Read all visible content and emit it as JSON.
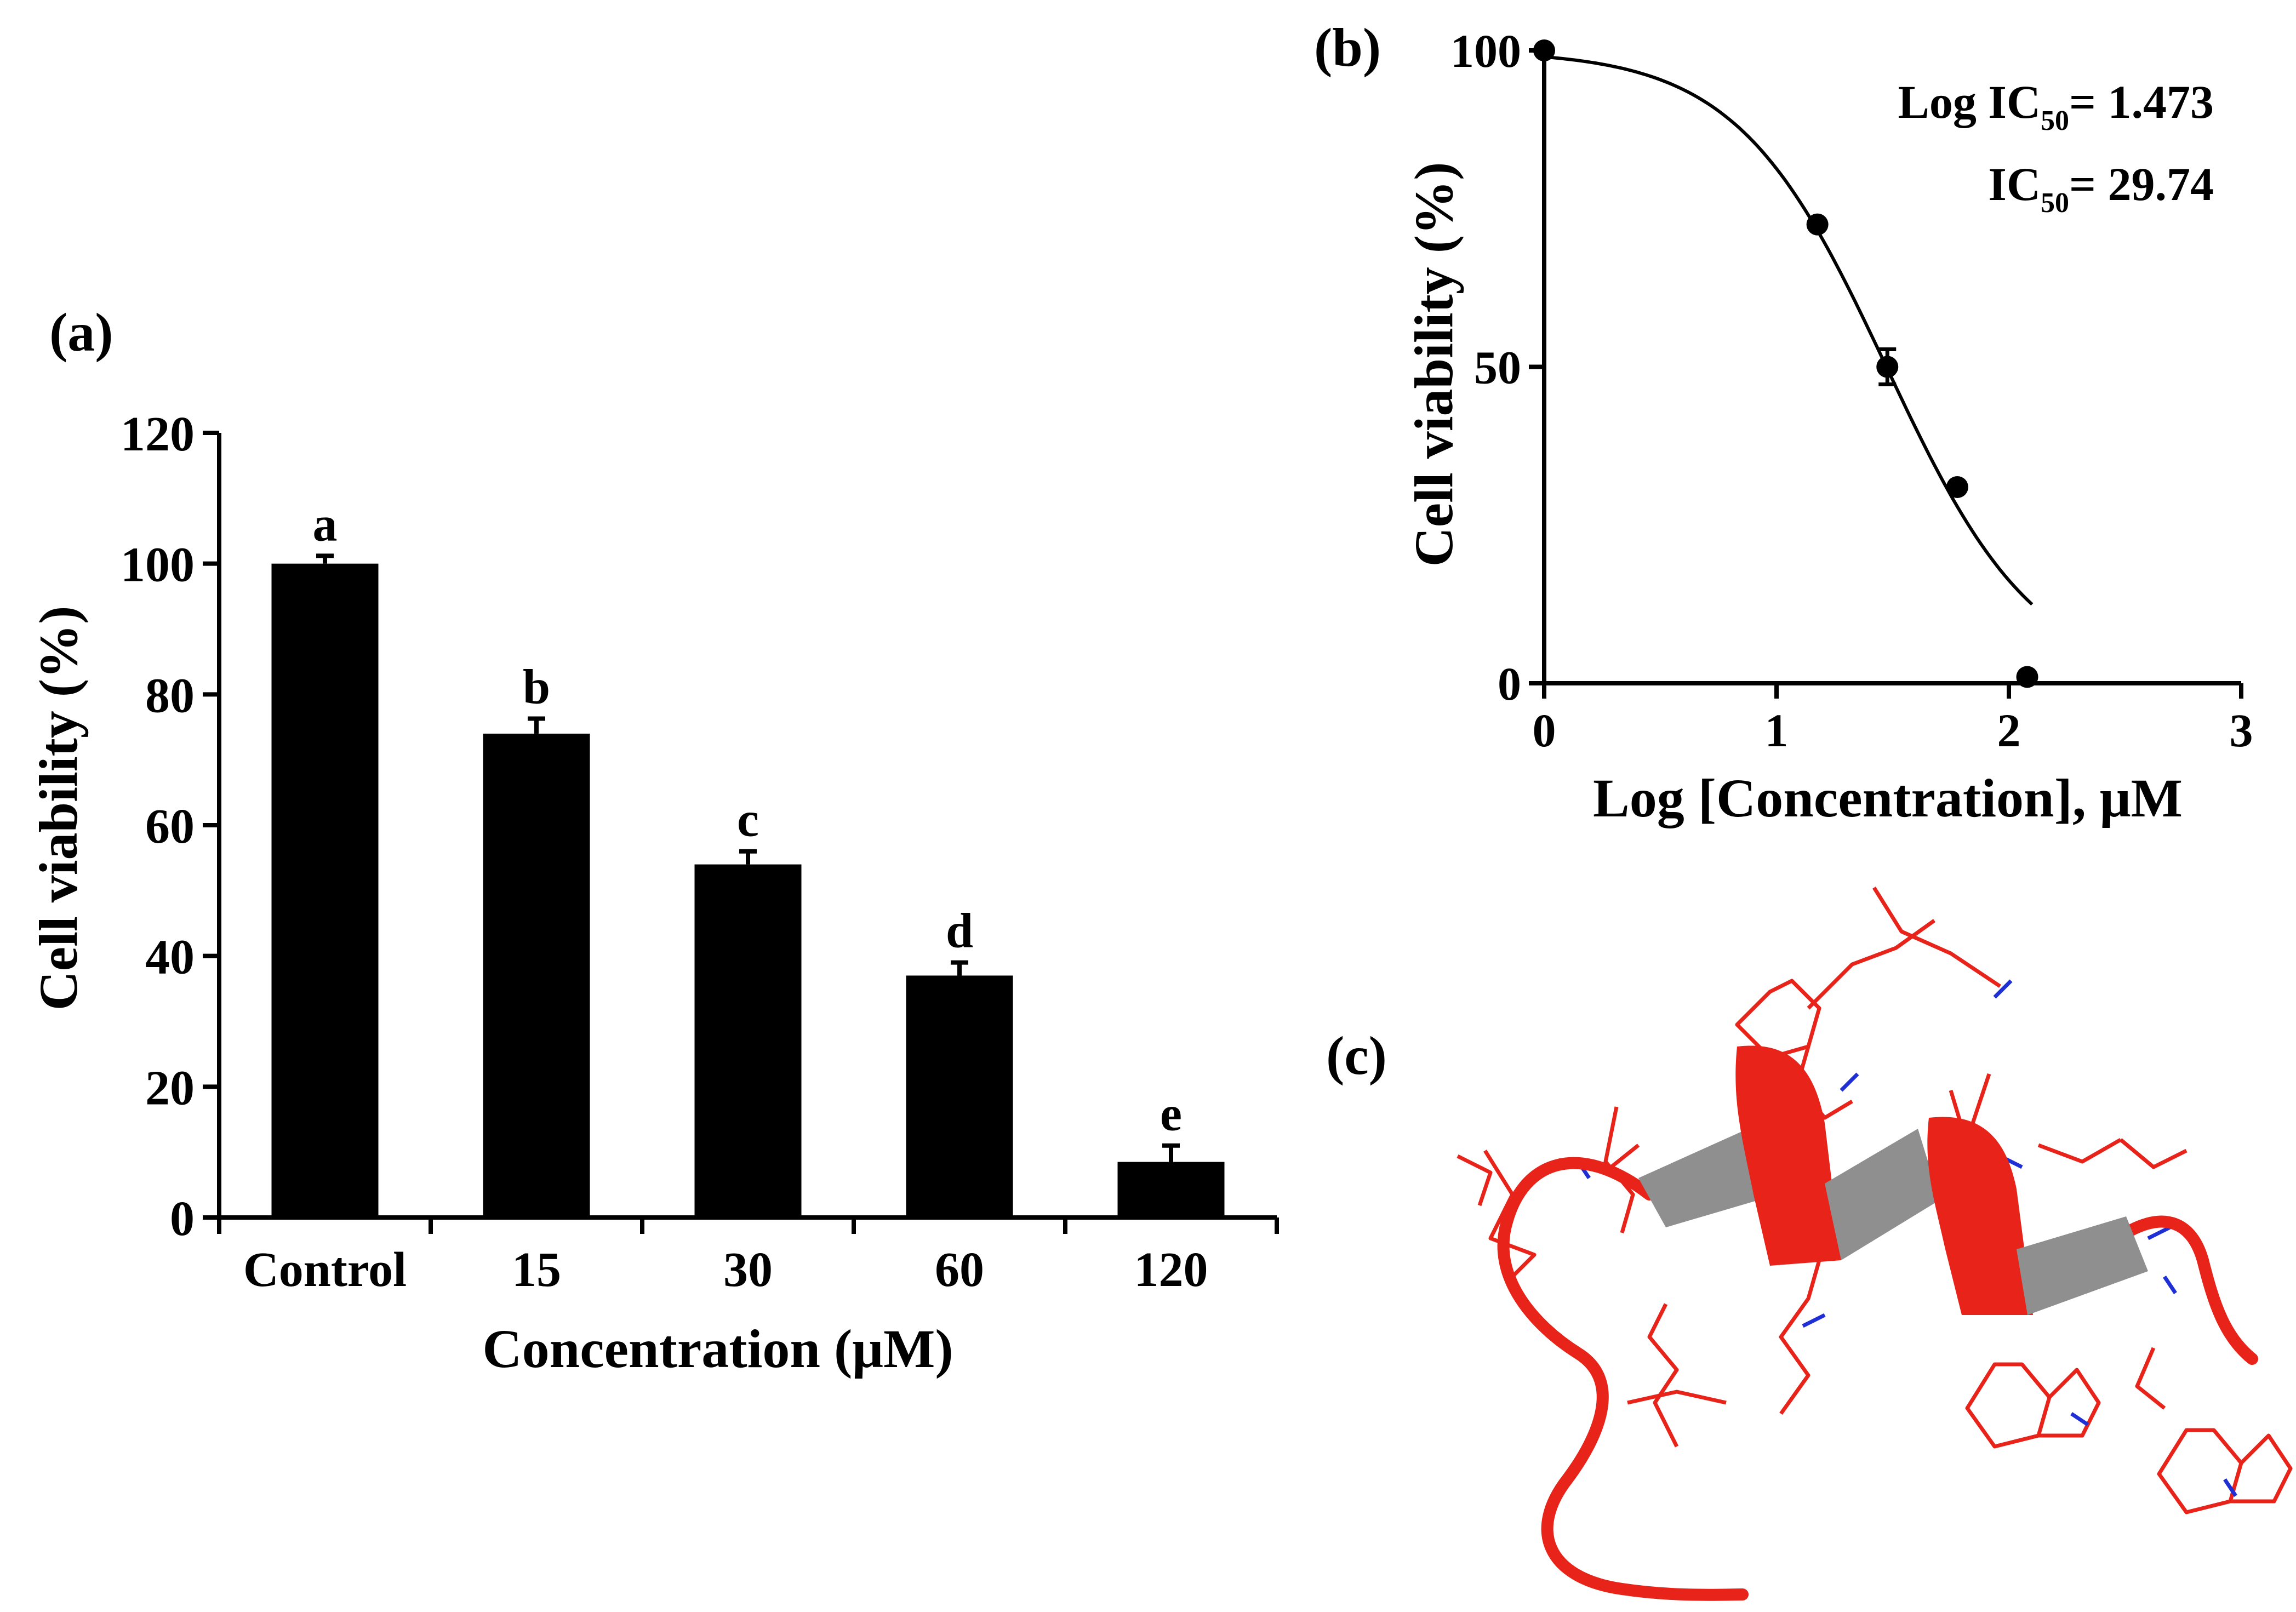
{
  "colors": {
    "bar": "#000000",
    "axis": "#000000",
    "curve": "#000000",
    "helix_red": "#e8231a",
    "helix_gray": "#8f8f8f",
    "atom_blue": "#1f2fd6"
  },
  "chart_data": [
    {
      "panel_label": "(a)",
      "type": "bar",
      "categories": [
        "Control",
        "15",
        "30",
        "60",
        "120"
      ],
      "values": [
        100,
        74,
        54,
        37,
        8.5
      ],
      "errors": [
        1.2,
        2.3,
        2.0,
        2.0,
        2.5
      ],
      "significance_letters": [
        "a",
        "b",
        "c",
        "d",
        "e"
      ],
      "xlabel": "Concentration (μM)",
      "ylabel": "Cell viability (%)",
      "ylim": [
        0,
        120
      ],
      "yticks": [
        "0",
        "20",
        "40",
        "60",
        "80",
        "100",
        "120"
      ]
    },
    {
      "panel_label": "(b)",
      "type": "scatter",
      "x": [
        0,
        1.176,
        1.477,
        1.778,
        2.079
      ],
      "y": [
        100,
        72.5,
        50,
        31,
        1
      ],
      "fit": "sigmoidal dose-response",
      "logIC50": 1.473,
      "hill_slope": -1.35,
      "xlabel": "Log [Concentration], μM",
      "ylabel": "Cell viability (%)",
      "xlim": [
        0,
        3
      ],
      "ylim": [
        0,
        100
      ],
      "xticks": [
        "0",
        "1",
        "2",
        "3"
      ],
      "yticks": [
        "0",
        "50",
        "100"
      ],
      "annotation_log_prefix": "Log IC",
      "annotation_sub": "50",
      "annotation_log_value": "= 1.473",
      "annotation_ic_prefix": "IC",
      "annotation_ic_value": "= 29.74"
    }
  ],
  "panel_c": {
    "label": "(c)",
    "image_icon": "peptide-helix-structure-icon"
  }
}
